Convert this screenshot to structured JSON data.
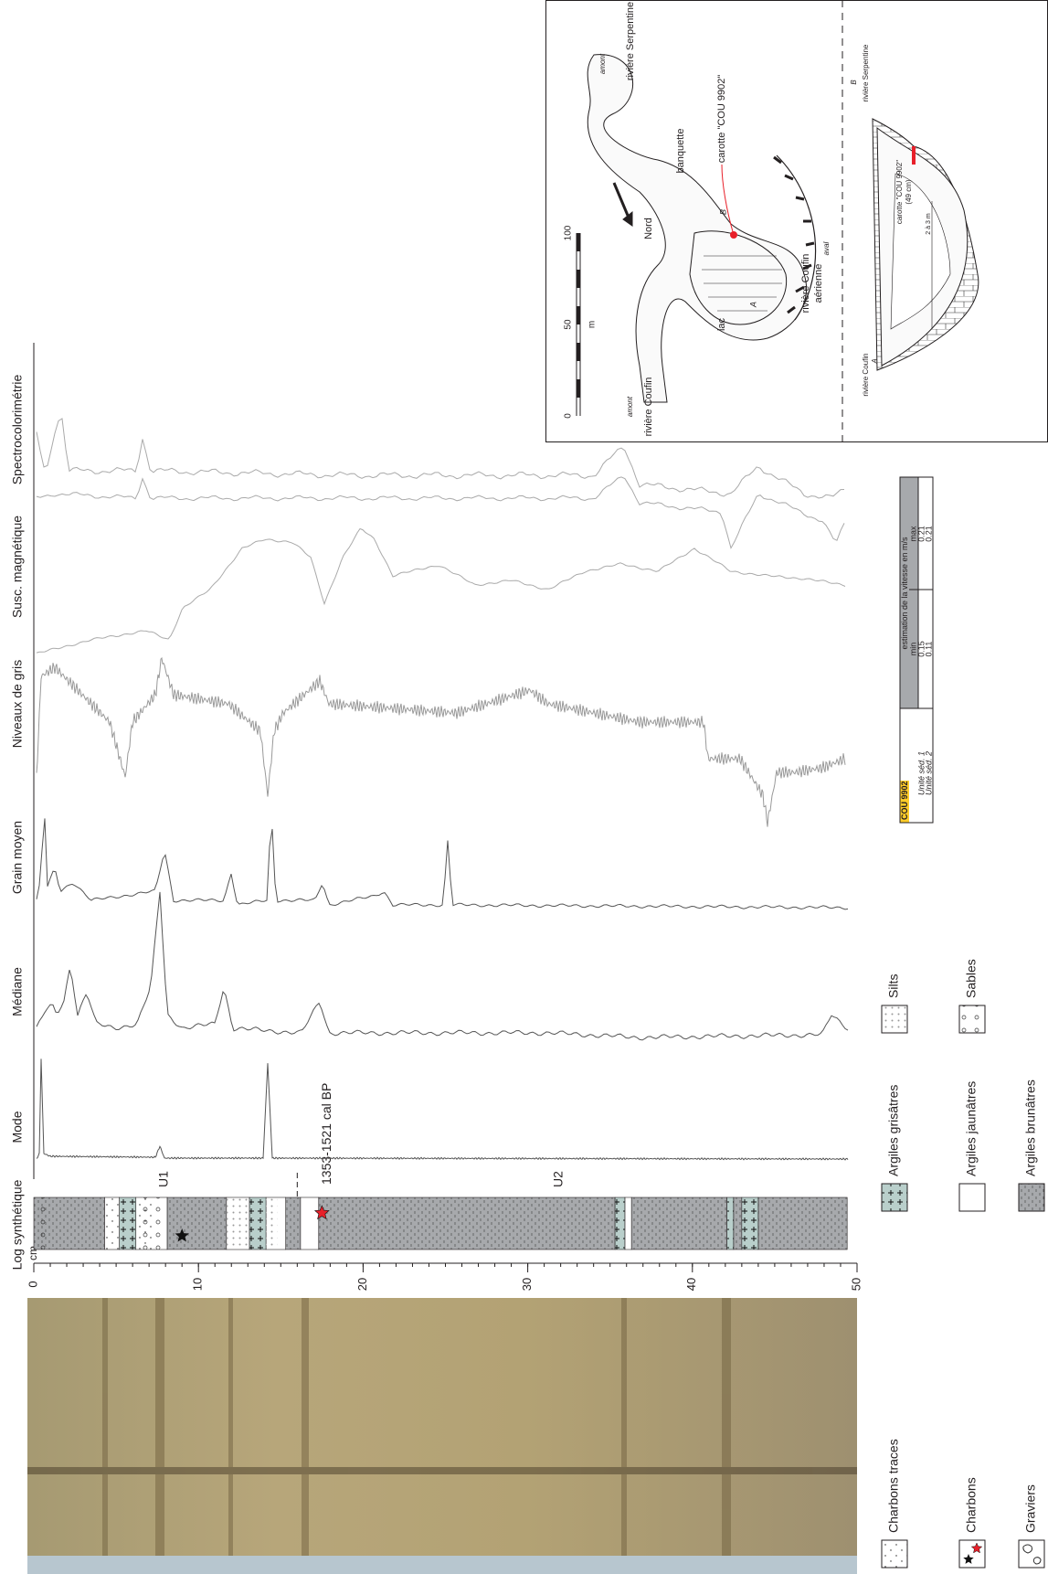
{
  "figure": {
    "depth_axis": {
      "unit": "cm",
      "lim": [
        0,
        50
      ],
      "ticks": [
        0,
        10,
        20,
        30,
        40,
        50
      ]
    },
    "columns": [
      "Log synthétique",
      "Mode",
      "Médiane",
      "Grain moyen",
      "Niveaux de gris",
      "Susc. magnétique",
      "Spectrocolorimétrie"
    ],
    "units": [
      "U1",
      "U2"
    ],
    "unit_boundary": 16,
    "dating": {
      "label": "1353-1521 cal BP",
      "depth": 17.5,
      "color": "#e8202a"
    },
    "legend": {
      "clays": [
        {
          "label": "Argiles brunâtres",
          "color": "#a7a9ac",
          "layers": [
            [
              0,
              4.3
            ],
            [
              8.1,
              11.7
            ],
            [
              15.3,
              16.2
            ],
            [
              17.3,
              35.3
            ],
            [
              36.3,
              42.1
            ],
            [
              42.5,
              43
            ],
            [
              44,
              49.4
            ]
          ]
        },
        {
          "label": "Argiles jaunâtres",
          "color": "#ffffff",
          "layers": [
            [
              4.3,
              5.2
            ],
            [
              6.2,
              8.1
            ],
            [
              11.7,
              13.1
            ],
            [
              14.1,
              15.3
            ],
            [
              16.2,
              17.3
            ],
            [
              35.9,
              36.3
            ]
          ]
        },
        {
          "label": "Argiles grisâtres",
          "color": "#b9cfcb",
          "layers": [
            [
              5.2,
              6.2
            ],
            [
              13.1,
              14.1
            ],
            [
              35.3,
              35.9
            ],
            [
              42.1,
              42.5
            ],
            [
              43,
              44
            ]
          ]
        }
      ],
      "textures": [
        {
          "label": "Silts",
          "layers": [
            [
              11.7,
              13.1
            ],
            [
              14.1,
              14.8
            ]
          ]
        },
        {
          "label": "Sables",
          "layers": [
            [
              0,
              1
            ],
            [
              6.2,
              8.1
            ]
          ]
        }
      ],
      "charcoal": [
        {
          "label": "Charbons traces",
          "layers": [
            [
              4.3,
              5.2
            ],
            [
              6.2,
              7.3
            ]
          ]
        },
        {
          "label": "Charbons",
          "depths": [
            9
          ]
        },
        {
          "label": "Graviers"
        }
      ]
    },
    "table": {
      "core": "COU 9902",
      "header": "estimation de la vitesse en m/s",
      "cols": [
        "min",
        "max"
      ],
      "rows": [
        {
          "label": "Unité séd. 1",
          "values": [
            0.15,
            0.21
          ]
        },
        {
          "label": "Unité séd. 2",
          "values": [
            0.11,
            0.21
          ]
        }
      ]
    },
    "map": {
      "upstream": "amont",
      "serpentine": "rivière Serpentine",
      "bench": "banquette",
      "core": "carotte \"COU 9902\"",
      "north": "Nord",
      "scale": {
        "ticks": [
          0,
          50,
          100
        ],
        "unit": "m"
      },
      "upstream2": "amont",
      "coufin": "rivière Coufin",
      "lake": "lac",
      "a": "A",
      "b": "B",
      "coufin_aerial": [
        "rivière Coufin",
        "aérienne"
      ],
      "downstream": "aval",
      "section": {
        "serpentine": "rivière Serpentine",
        "b": "B",
        "a": "A",
        "coufin": "rivière Coufin",
        "core": [
          "carotte \"COU 9902\"",
          "(49 cm)"
        ],
        "depth": "2 à 3 m"
      }
    }
  }
}
